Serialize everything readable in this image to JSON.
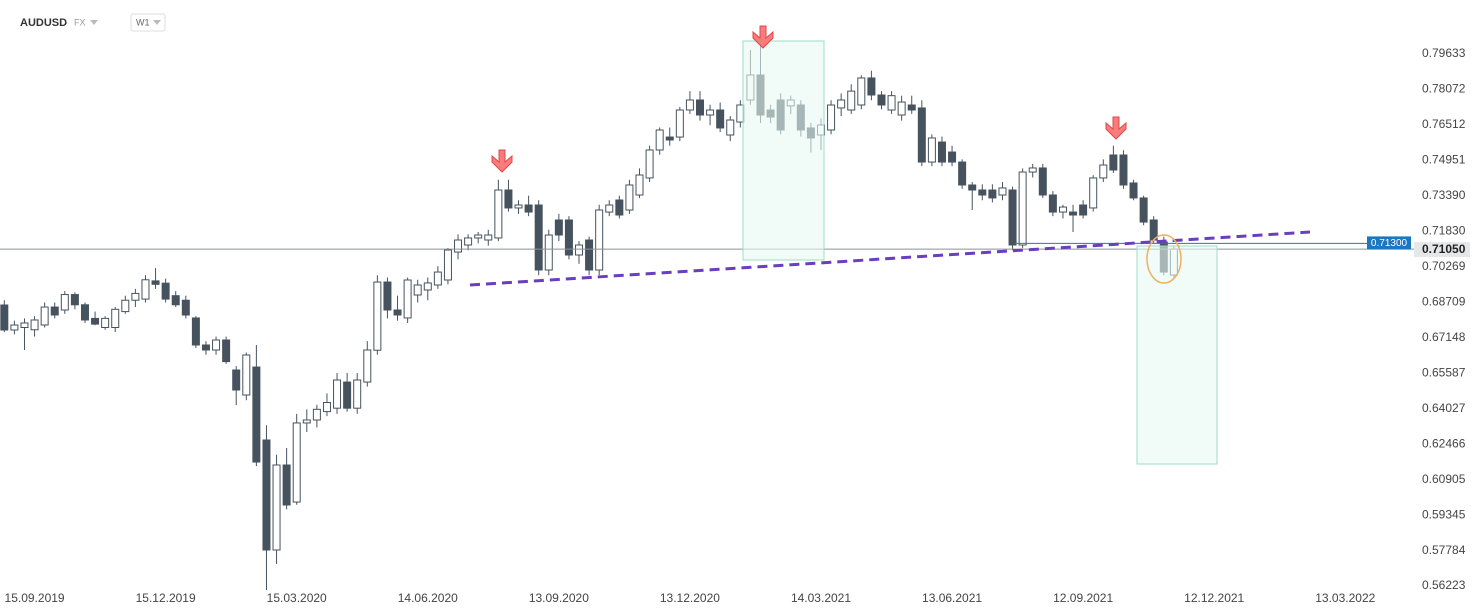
{
  "header": {
    "symbol": "AUDUSD",
    "market": "FX",
    "interval": "W1"
  },
  "chart_data": {
    "type": "candlestick",
    "up_color": "#ffffff",
    "down_color": "#46535e",
    "edge_color": "#46535e",
    "x": [
      "25.08.2019",
      "01.09.2019",
      "08.09.2019",
      "15.09.2019",
      "22.09.2019",
      "29.09.2019",
      "06.10.2019",
      "13.10.2019",
      "20.10.2019",
      "27.10.2019",
      "03.11.2019",
      "10.11.2019",
      "17.11.2019",
      "24.11.2019",
      "01.12.2019",
      "08.12.2019",
      "15.12.2019",
      "22.12.2019",
      "29.12.2019",
      "05.01.2020",
      "12.01.2020",
      "19.01.2020",
      "26.01.2020",
      "02.02.2020",
      "09.02.2020",
      "16.02.2020",
      "23.02.2020",
      "01.03.2020",
      "08.03.2020",
      "15.03.2020",
      "22.03.2020",
      "29.03.2020",
      "05.04.2020",
      "12.04.2020",
      "19.04.2020",
      "26.04.2020",
      "03.05.2020",
      "10.05.2020",
      "17.05.2020",
      "24.05.2020",
      "31.05.2020",
      "07.06.2020",
      "14.06.2020",
      "21.06.2020",
      "28.06.2020",
      "05.07.2020",
      "12.07.2020",
      "19.07.2020",
      "26.07.2020",
      "02.08.2020",
      "09.08.2020",
      "16.08.2020",
      "23.08.2020",
      "30.08.2020",
      "06.09.2020",
      "13.09.2020",
      "20.09.2020",
      "27.09.2020",
      "04.10.2020",
      "11.10.2020",
      "18.10.2020",
      "25.10.2020",
      "01.11.2020",
      "08.11.2020",
      "15.11.2020",
      "22.11.2020",
      "29.11.2020",
      "06.12.2020",
      "13.12.2020",
      "20.12.2020",
      "27.12.2020",
      "03.01.2021",
      "10.01.2021",
      "17.01.2021",
      "24.01.2021",
      "31.01.2021",
      "07.02.2021",
      "14.02.2021",
      "21.02.2021",
      "28.02.2021",
      "07.03.2021",
      "14.03.2021",
      "21.03.2021",
      "28.03.2021",
      "04.04.2021",
      "11.04.2021",
      "18.04.2021",
      "25.04.2021",
      "02.05.2021",
      "09.05.2021",
      "16.05.2021",
      "23.05.2021",
      "30.05.2021",
      "06.06.2021",
      "13.06.2021",
      "20.06.2021",
      "27.06.2021",
      "04.07.2021",
      "11.07.2021",
      "18.07.2021",
      "25.07.2021",
      "01.08.2021",
      "08.08.2021",
      "15.08.2021",
      "22.08.2021",
      "29.08.2021",
      "05.09.2021",
      "12.09.2021",
      "19.09.2021",
      "26.09.2021",
      "03.10.2021",
      "10.10.2021",
      "17.10.2021",
      "24.10.2021",
      "31.10.2021",
      "07.11.2021",
      "14.11.2021"
    ],
    "open": [
      0.6859,
      0.6749,
      0.676,
      0.675,
      0.6771,
      0.685,
      0.6837,
      0.6905,
      0.686,
      0.68,
      0.676,
      0.676,
      0.683,
      0.688,
      0.6885,
      0.6965,
      0.6955,
      0.69,
      0.688,
      0.6802,
      0.6683,
      0.6661,
      0.6705,
      0.6573,
      0.6463,
      0.6586,
      0.6265,
      0.5781,
      0.6155,
      0.5992,
      0.634,
      0.6353,
      0.639,
      0.6405,
      0.652,
      0.6405,
      0.652,
      0.666,
      0.696,
      0.6837,
      0.6802,
      0.6903,
      0.6925,
      0.6947,
      0.6969,
      0.7092,
      0.7123,
      0.7154,
      0.7145,
      0.7154,
      0.7365,
      0.7286,
      0.7299,
      0.7299,
      0.7013,
      0.7233,
      0.7233,
      0.7079,
      0.7145,
      0.7013,
      0.7268,
      0.7321,
      0.7277,
      0.7343,
      0.7418,
      0.7541,
      0.7598,
      0.7598,
      0.7717,
      0.7761,
      0.7695,
      0.7717,
      0.7607,
      0.7664,
      0.7761,
      0.7871,
      0.7717,
      0.7761,
      0.7735,
      0.7739,
      0.7638,
      0.7607,
      0.7629,
      0.7726,
      0.7717,
      0.7739,
      0.7858,
      0.7783,
      0.7717,
      0.7695,
      0.7739,
      0.7726,
      0.7488,
      0.7576,
      0.7532,
      0.7488,
      0.7387,
      0.7365,
      0.7365,
      0.7343,
      0.7365,
      0.7123,
      0.7444,
      0.7462,
      0.7343,
      0.7268,
      0.7268,
      0.7299,
      0.7286,
      0.7418,
      0.7519,
      0.7519,
      0.7396,
      0.733,
      0.7233,
      0.7136,
      0.6991
    ],
    "high": [
      0.688,
      0.679,
      0.68,
      0.681,
      0.687,
      0.687,
      0.692,
      0.6915,
      0.687,
      0.683,
      0.681,
      0.685,
      0.69,
      0.693,
      0.699,
      0.7021,
      0.6975,
      0.692,
      0.69,
      0.681,
      0.67,
      0.672,
      0.672,
      0.659,
      0.665,
      0.6683,
      0.633,
      0.62,
      0.623,
      0.638,
      0.64,
      0.642,
      0.647,
      0.656,
      0.656,
      0.656,
      0.67,
      0.699,
      0.698,
      0.69,
      0.698,
      0.697,
      0.698,
      0.703,
      0.711,
      0.717,
      0.717,
      0.718,
      0.719,
      0.741,
      0.741,
      0.732,
      0.734,
      0.732,
      0.719,
      0.726,
      0.725,
      0.714,
      0.716,
      0.73,
      0.732,
      0.734,
      0.741,
      0.746,
      0.756,
      0.764,
      0.764,
      0.773,
      0.78,
      0.78,
      0.774,
      0.775,
      0.769,
      0.776,
      0.7981,
      0.8003,
      0.774,
      0.779,
      0.778,
      0.776,
      0.766,
      0.768,
      0.776,
      0.779,
      0.783,
      0.787,
      0.789,
      0.78,
      0.78,
      0.778,
      0.778,
      0.776,
      0.761,
      0.76,
      0.756,
      0.75,
      0.74,
      0.739,
      0.739,
      0.74,
      0.738,
      0.746,
      0.748,
      0.748,
      0.736,
      0.73,
      0.73,
      0.732,
      0.743,
      0.75,
      0.756,
      0.754,
      0.741,
      0.734,
      0.725,
      0.716,
      0.712
    ],
    "low": [
      0.674,
      0.673,
      0.6661,
      0.672,
      0.676,
      0.68,
      0.682,
      0.684,
      0.678,
      0.677,
      0.675,
      0.674,
      0.682,
      0.685,
      0.687,
      0.693,
      0.687,
      0.685,
      0.68,
      0.667,
      0.664,
      0.664,
      0.66,
      0.6419,
      0.644,
      0.615,
      0.5605,
      0.572,
      0.596,
      0.598,
      0.63,
      0.632,
      0.637,
      0.638,
      0.639,
      0.638,
      0.65,
      0.664,
      0.68,
      0.679,
      0.678,
      0.687,
      0.688,
      0.693,
      0.695,
      0.706,
      0.71,
      0.713,
      0.712,
      0.714,
      0.727,
      0.726,
      0.725,
      0.699,
      0.699,
      0.714,
      0.706,
      0.704,
      0.699,
      0.699,
      0.725,
      0.724,
      0.726,
      0.733,
      0.74,
      0.752,
      0.756,
      0.758,
      0.77,
      0.767,
      0.765,
      0.762,
      0.758,
      0.764,
      0.774,
      0.766,
      0.766,
      0.761,
      0.77,
      0.76,
      0.753,
      0.7541,
      0.761,
      0.769,
      0.77,
      0.772,
      0.776,
      0.772,
      0.77,
      0.767,
      0.77,
      0.747,
      0.747,
      0.747,
      0.747,
      0.737,
      0.7277,
      0.732,
      0.731,
      0.732,
      0.71,
      0.711,
      0.742,
      0.733,
      0.725,
      0.724,
      0.718,
      0.724,
      0.727,
      0.74,
      0.744,
      0.737,
      0.732,
      0.721,
      0.713,
      0.699,
      0.698
    ],
    "close": [
      0.6749,
      0.6771,
      0.678,
      0.6793,
      0.685,
      0.6815,
      0.6905,
      0.686,
      0.6793,
      0.6775,
      0.68,
      0.684,
      0.688,
      0.691,
      0.697,
      0.695,
      0.6885,
      0.686,
      0.6815,
      0.6683,
      0.6661,
      0.6705,
      0.661,
      0.6485,
      0.6639,
      0.6168,
      0.5781,
      0.6155,
      0.5979,
      0.634,
      0.6353,
      0.64,
      0.643,
      0.6529,
      0.6405,
      0.6529,
      0.6661,
      0.696,
      0.6837,
      0.6815,
      0.6969,
      0.6947,
      0.6956,
      0.7004,
      0.7101,
      0.7145,
      0.7154,
      0.7167,
      0.7167,
      0.7365,
      0.7286,
      0.7299,
      0.7268,
      0.7013,
      0.7167,
      0.7167,
      0.7079,
      0.7123,
      0.7013,
      0.7277,
      0.7299,
      0.7255,
      0.7387,
      0.7431,
      0.7541,
      0.7629,
      0.7585,
      0.7717,
      0.7761,
      0.7695,
      0.7717,
      0.7638,
      0.7673,
      0.7739,
      0.7871,
      0.7695,
      0.7686,
      0.7629,
      0.7761,
      0.7629,
      0.7594,
      0.7651,
      0.7739,
      0.7761,
      0.78,
      0.7858,
      0.7783,
      0.7739,
      0.778,
      0.7752,
      0.7717,
      0.7488,
      0.7594,
      0.7488,
      0.7488,
      0.7387,
      0.7365,
      0.7343,
      0.733,
      0.7374,
      0.7123,
      0.7444,
      0.7462,
      0.7343,
      0.7268,
      0.729,
      0.7255,
      0.7255,
      0.7418,
      0.7475,
      0.7453,
      0.7387,
      0.733,
      0.7224,
      0.7145,
      0.7004,
      0.7105
    ],
    "xlim": [
      "22.08.2019",
      "20.04.2022"
    ],
    "xticks": [
      "15.09.2019",
      "15.12.2019",
      "15.03.2020",
      "14.06.2020",
      "13.09.2020",
      "13.12.2020",
      "14.03.2021",
      "13.06.2021",
      "12.09.2021",
      "12.12.2021",
      "13.03.2022"
    ],
    "ylim": [
      0.5605,
      0.8069
    ],
    "yticks": [
      0.79633,
      0.78072,
      0.76512,
      0.74951,
      {
        "value": 0.7339,
        "label": "0.73390"
      },
      {
        "value": 0.7183,
        "label": "0.71830"
      },
      0.70269,
      0.68709,
      0.67148,
      0.65587,
      0.64027,
      0.62466,
      0.60905,
      0.59345,
      0.57784,
      0.56223
    ],
    "price_lines": [
      {
        "value": 0.713,
        "label": "0.71300",
        "color": "#1a78c2"
      },
      {
        "value": 0.7105,
        "label": "0.71050",
        "color": "#8a9096"
      }
    ]
  }
}
